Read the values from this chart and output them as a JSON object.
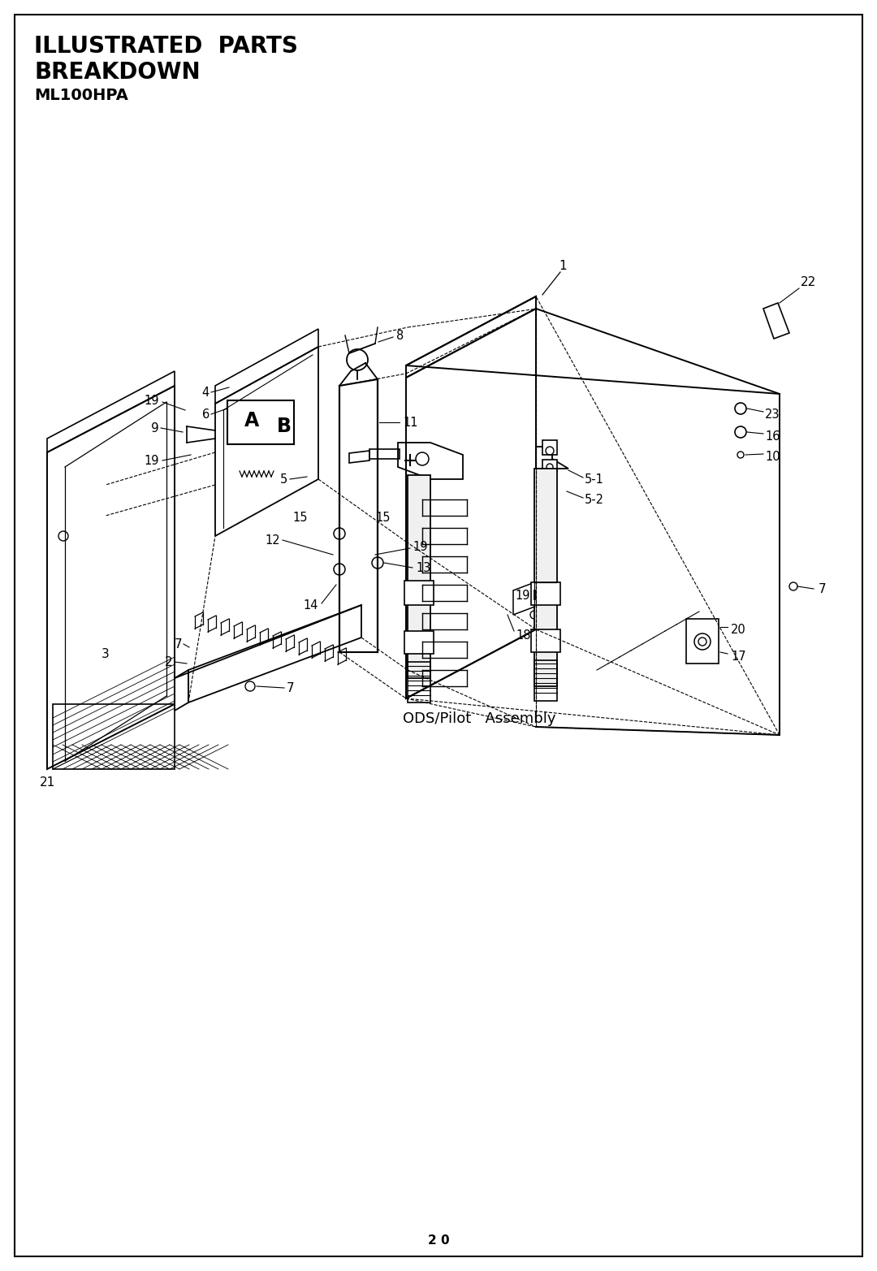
{
  "title_line1": "ILLUSTRATED  PARTS",
  "title_line2": "BREAKDOWN",
  "title_line3": "ML100HPA",
  "page_number": "2 0",
  "background_color": "#ffffff",
  "border_color": "#000000",
  "line_color": "#000000",
  "text_color": "#000000",
  "title_fontsize": 20,
  "subtitle_fontsize": 20,
  "model_fontsize": 14,
  "label_fontsize": 10.5,
  "page_fontsize": 11,
  "ods_label": "ODS/Pilot   Assembly",
  "ods_fontsize": 13
}
